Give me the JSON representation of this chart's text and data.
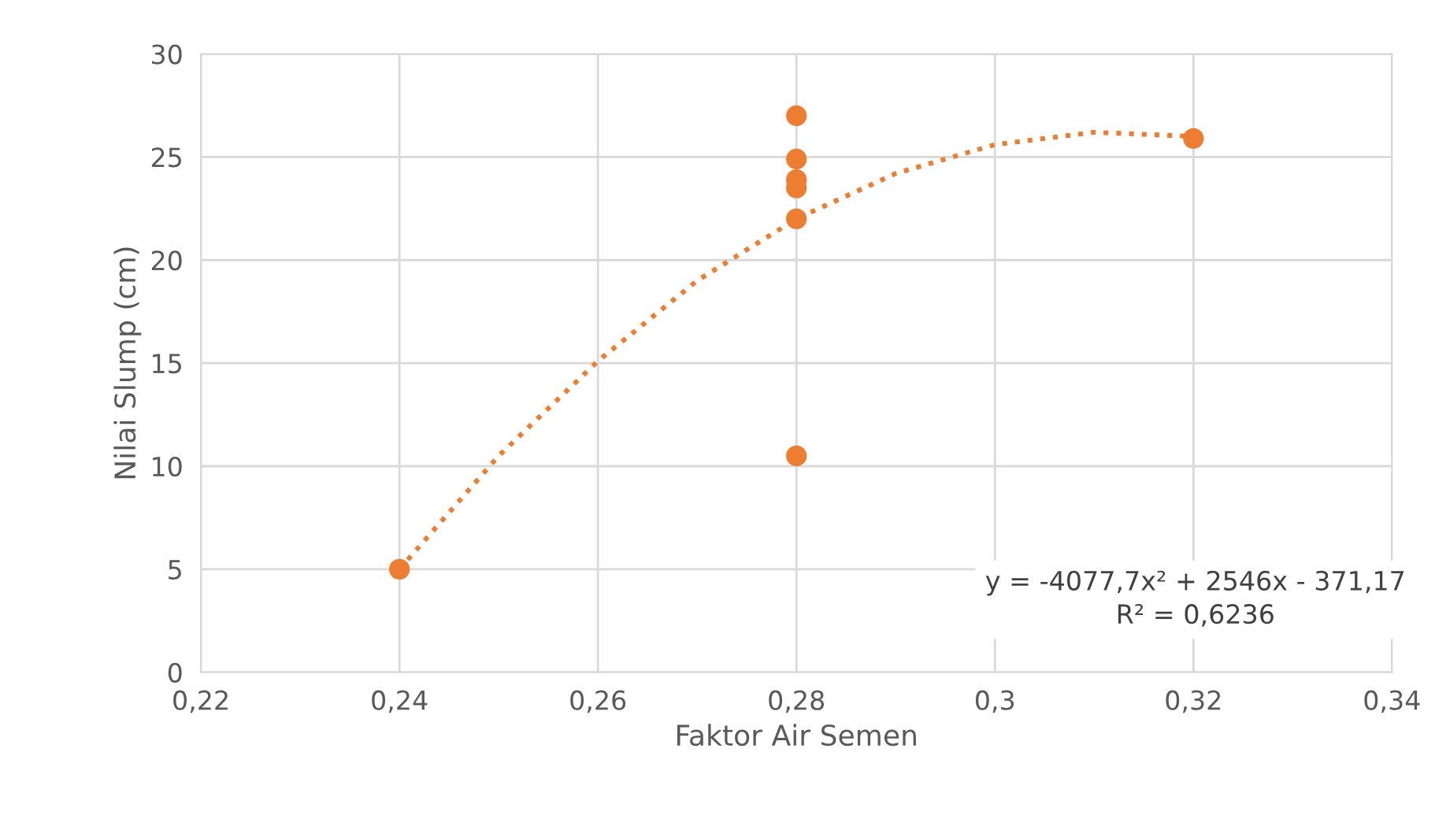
{
  "chart_data": {
    "type": "scatter",
    "xlabel": "Faktor Air Semen",
    "ylabel": "Nilai Slump (cm)",
    "series": [
      {
        "color": "#ed7d31",
        "marker": "circle",
        "x": [
          0.24,
          0.28,
          0.28,
          0.28,
          0.28,
          0.28,
          0.28,
          0.32
        ],
        "values": [
          5,
          27,
          24.9,
          23.9,
          23.5,
          22,
          10.5,
          25.9
        ]
      },
      {
        "type": "line",
        "color": "#ed7d31",
        "marker": "none",
        "line_style": "dotted",
        "x": [
          0.24,
          0.25,
          0.26,
          0.27,
          0.28,
          0.29,
          0.3,
          0.31,
          0.32
        ],
        "values": [
          5.0,
          10.5,
          15.1,
          19.0,
          22.0,
          24.2,
          25.6,
          26.2,
          26.0
        ]
      }
    ],
    "xlim": [
      0.22,
      0.34
    ],
    "xticks": [
      {
        "value": 0.22,
        "label": "0,22"
      },
      {
        "value": 0.24,
        "label": "0,24"
      },
      {
        "value": 0.26,
        "label": "0,26"
      },
      {
        "value": 0.28,
        "label": "0,28"
      },
      {
        "value": 0.3,
        "label": "0,3"
      },
      {
        "value": 0.32,
        "label": "0,32"
      },
      {
        "value": 0.34,
        "label": "0,34"
      }
    ],
    "ylim": [
      0,
      30
    ],
    "yticks": [
      0,
      5,
      10,
      15,
      20,
      25,
      30
    ],
    "grid": true,
    "annotations": [
      "y = -4077,7x² + 2546x - 371,17\nR² = 0,6236"
    ]
  }
}
